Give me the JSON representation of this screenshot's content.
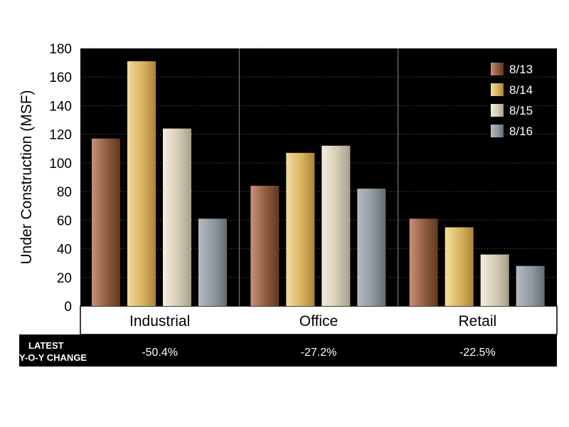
{
  "chart_data": {
    "type": "bar",
    "title": "",
    "xlabel": "",
    "ylabel": "Under Construction (MSF)",
    "ylim": [
      0,
      180
    ],
    "yticks": [
      0,
      20,
      40,
      60,
      80,
      100,
      120,
      140,
      160,
      180
    ],
    "grid": "horizontal dotted",
    "legend_position": "top-right",
    "categories": [
      "Industrial",
      "Office",
      "Retail"
    ],
    "series": [
      {
        "name": "8/13",
        "values": [
          117,
          84,
          61
        ]
      },
      {
        "name": "8/14",
        "values": [
          171,
          107,
          55
        ]
      },
      {
        "name": "8/15",
        "values": [
          124,
          112,
          36
        ]
      },
      {
        "name": "8/16",
        "values": [
          61,
          82,
          28
        ]
      }
    ],
    "series_colors": [
      [
        "#c8917a",
        "#8f5a3c",
        "#5e3a20"
      ],
      [
        "#f3dda0",
        "#d9b25e",
        "#a9833a"
      ],
      [
        "#f4efdf",
        "#d3cab2",
        "#a69f8a"
      ],
      [
        "#b4bcc2",
        "#8f989f",
        "#646c72"
      ]
    ]
  },
  "footer": {
    "label_line1": "LATEST",
    "label_line2": "Y-O-Y CHANGE",
    "changes": [
      "-50.4%",
      "-27.2%",
      "-22.5%"
    ]
  }
}
